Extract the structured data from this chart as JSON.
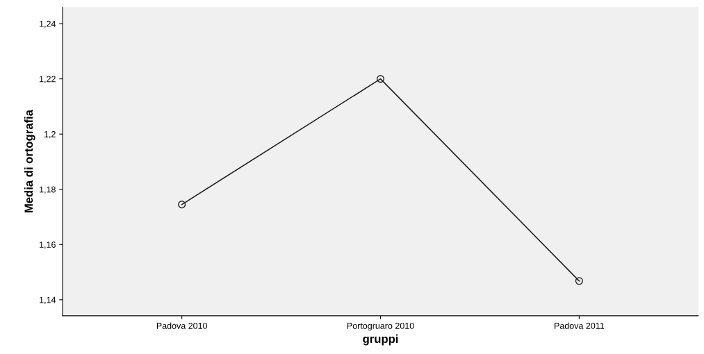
{
  "chart_data": {
    "type": "line",
    "xlabel": "gruppi",
    "ylabel": "Media di ortografia",
    "categories": [
      "Padova 2010",
      "Portogruaro 2010",
      "Padova 2011"
    ],
    "series": [
      {
        "color": "#222222",
        "values": [
          1.1745,
          1.22,
          1.1468
        ]
      }
    ],
    "ylim": [
      1.1342,
      1.246
    ],
    "yticks": [
      {
        "value": 1.14,
        "label": "1,14"
      },
      {
        "value": 1.16,
        "label": "1,16"
      },
      {
        "value": 1.18,
        "label": "1,18"
      },
      {
        "value": 1.2,
        "label": "1,2"
      },
      {
        "value": 1.22,
        "label": "1,22"
      },
      {
        "value": 1.24,
        "label": "1,24"
      }
    ],
    "marker": "circle",
    "line_style": "solid"
  }
}
